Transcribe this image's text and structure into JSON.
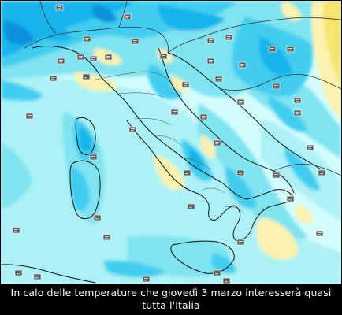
{
  "caption": "In calo delle temperature che giovedì 3 marzo interesserà quasi tutta l'Italia",
  "map": {
    "subject": "temperature forecast map of Italy",
    "colors": {
      "sea_light": "#d2fdfd",
      "very_light_cyan": "#aaf2f5",
      "light_cyan": "#7fe3f0",
      "cyan": "#3fcdf0",
      "sky_blue": "#14b4eb",
      "blue": "#0a90dc",
      "pale_yellow": "#fbf2ae",
      "yellow": "#f7e46c",
      "coastline": "#111111",
      "borders": "#333333",
      "marker_fill": "#5b5b5b",
      "marker_stroke": "#e8e8e8"
    },
    "station_marker_icon": "weather-station-icon",
    "station_marker_count": 40
  }
}
